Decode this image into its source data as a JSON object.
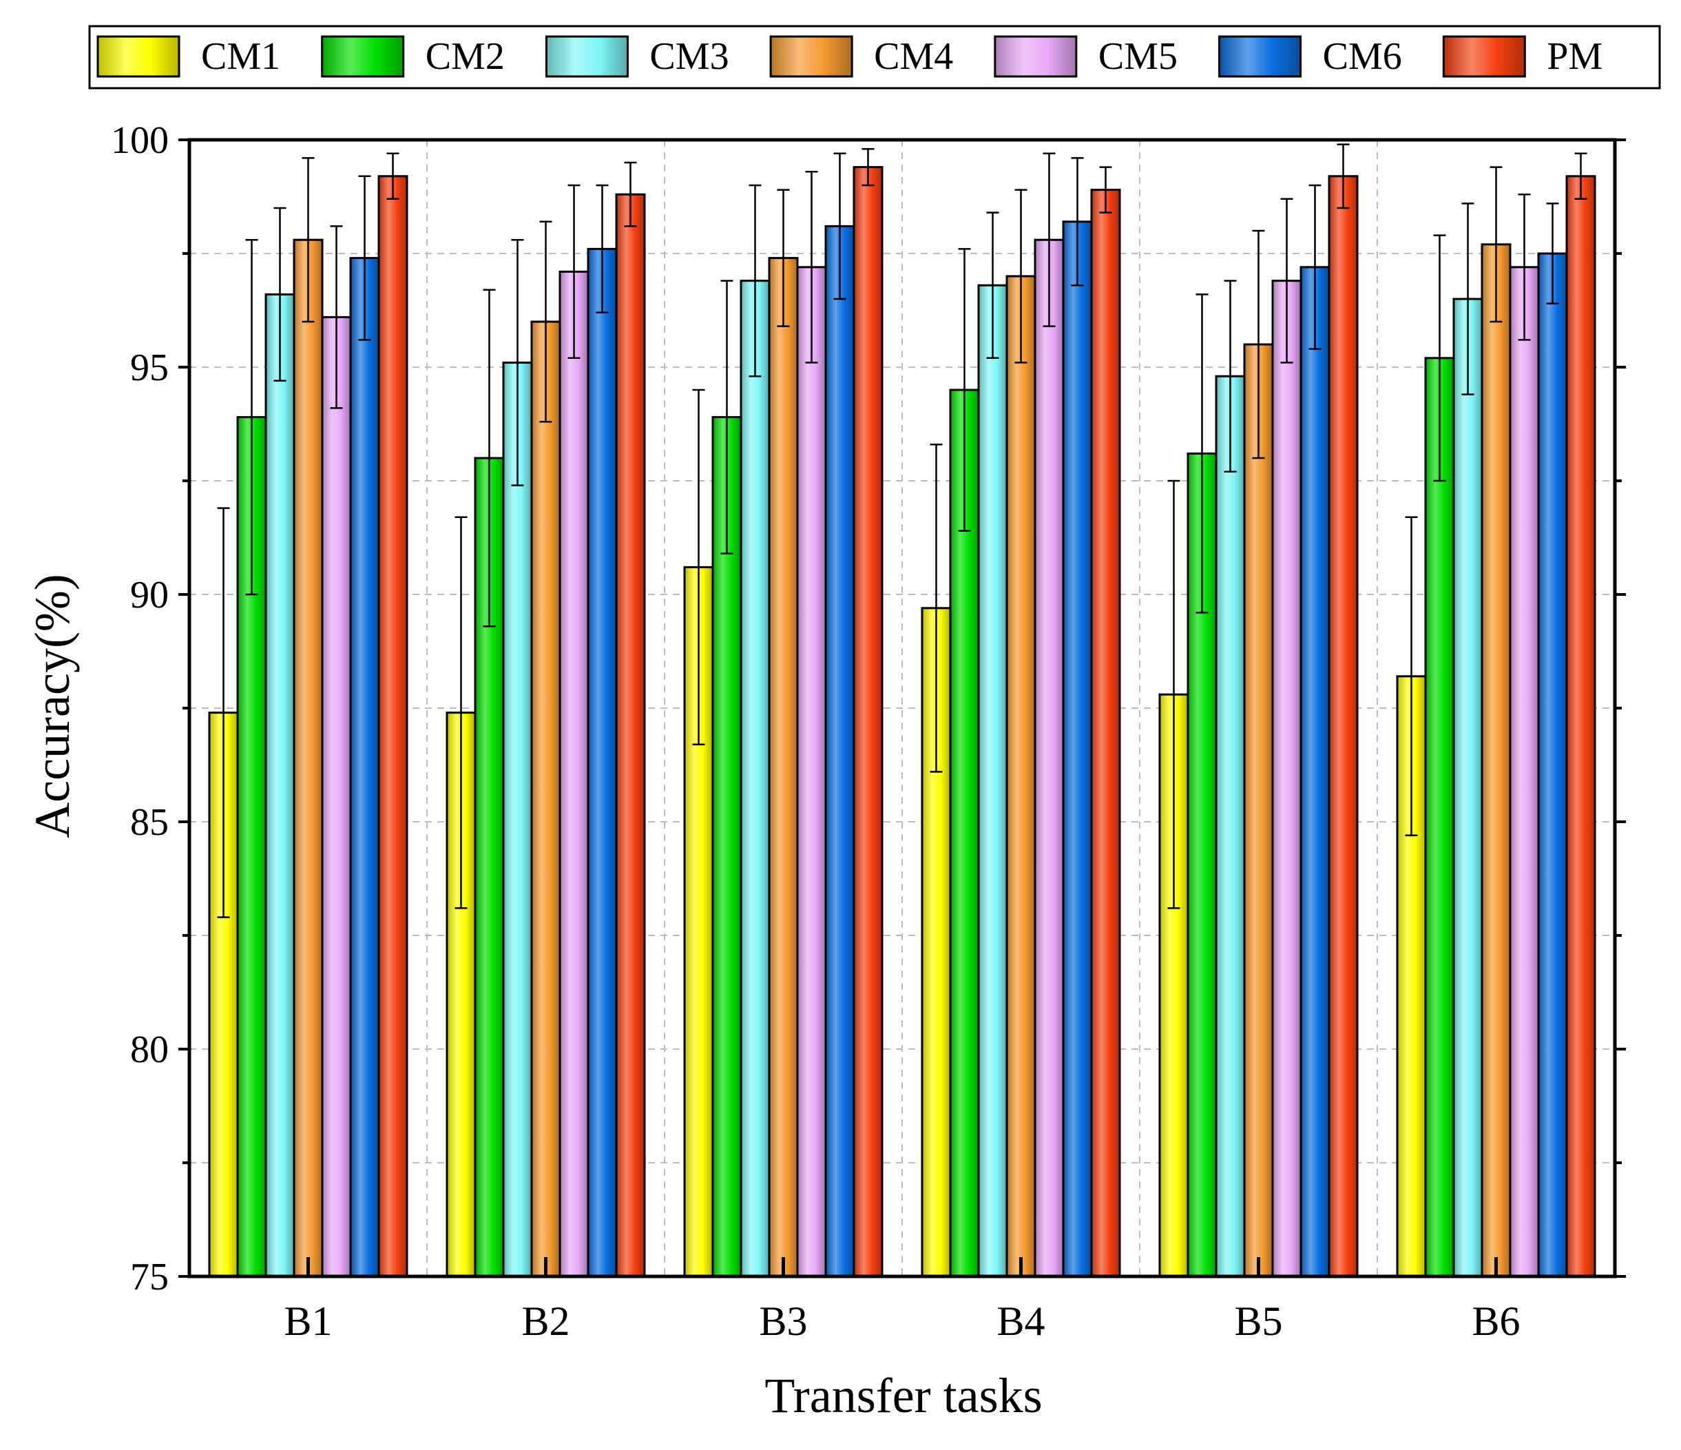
{
  "chart_data": {
    "type": "bar",
    "title": "",
    "xlabel": "Transfer tasks",
    "ylabel": "Accuracy(%)",
    "ylim": [
      75,
      100
    ],
    "yticks": [
      75,
      80,
      85,
      90,
      95,
      100
    ],
    "grid": true,
    "legend_position": "top",
    "categories": [
      "B1",
      "B2",
      "B3",
      "B4",
      "B5",
      "B6"
    ],
    "series": [
      {
        "name": "CM1",
        "color": "#ffff00",
        "values": [
          87.4,
          87.4,
          90.6,
          89.7,
          87.8,
          88.2
        ],
        "errors": [
          4.5,
          4.3,
          3.9,
          3.6,
          4.7,
          3.5
        ]
      },
      {
        "name": "CM2",
        "color": "#00e000",
        "values": [
          93.9,
          93.0,
          93.9,
          94.5,
          93.1,
          95.2
        ],
        "errors": [
          3.9,
          3.7,
          3.0,
          3.1,
          3.5,
          2.7
        ]
      },
      {
        "name": "CM3",
        "color": "#7ff5f5",
        "values": [
          96.6,
          95.1,
          96.9,
          96.8,
          94.8,
          96.5
        ],
        "errors": [
          1.9,
          2.7,
          2.1,
          1.6,
          2.1,
          2.1
        ]
      },
      {
        "name": "CM4",
        "color": "#f59a30",
        "values": [
          97.8,
          96.0,
          97.4,
          97.0,
          95.5,
          97.7
        ],
        "errors": [
          1.8,
          2.2,
          1.5,
          1.9,
          2.5,
          1.7
        ]
      },
      {
        "name": "CM5",
        "color": "#e8a8f8",
        "values": [
          96.1,
          97.1,
          97.2,
          97.8,
          96.9,
          97.2
        ],
        "errors": [
          2.0,
          1.9,
          2.1,
          1.9,
          1.8,
          1.6
        ]
      },
      {
        "name": "CM6",
        "color": "#0a6fe0",
        "values": [
          97.4,
          97.6,
          98.1,
          98.2,
          97.2,
          97.5
        ],
        "errors": [
          1.8,
          1.4,
          1.6,
          1.4,
          1.8,
          1.1
        ]
      },
      {
        "name": "PM",
        "color": "#f54010",
        "values": [
          99.2,
          98.8,
          99.4,
          98.9,
          99.2,
          99.2
        ],
        "errors": [
          0.5,
          0.7,
          0.4,
          0.5,
          0.7,
          0.5
        ]
      }
    ]
  }
}
